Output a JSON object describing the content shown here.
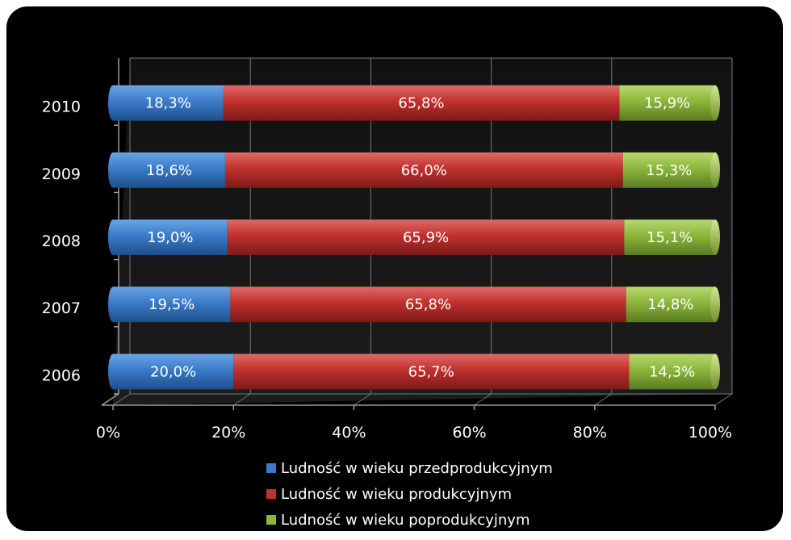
{
  "chart_data": {
    "type": "bar",
    "orientation": "horizontal",
    "stacked": "percent",
    "categories": [
      "2006",
      "2007",
      "2008",
      "2009",
      "2010"
    ],
    "series": [
      {
        "name": "Ludność w wieku przedprodukcyjnym",
        "values": [
          20.0,
          19.5,
          19.0,
          18.6,
          18.3
        ],
        "labels": [
          "20,0%",
          "19,5%",
          "19,0%",
          "18,6%",
          "18,3%"
        ],
        "color": "#3b7bc8"
      },
      {
        "name": "Ludność w wieku produkcyjnym",
        "values": [
          65.7,
          65.8,
          65.9,
          66.0,
          65.8
        ],
        "labels": [
          "65,7%",
          "65,8%",
          "65,9%",
          "66,0%",
          "65,8%"
        ],
        "color": "#c0312e"
      },
      {
        "name": "Ludność w wieku poprodukcyjnym",
        "values": [
          14.3,
          14.8,
          15.1,
          15.3,
          15.9
        ],
        "labels": [
          "14,3%",
          "14,8%",
          "15,1%",
          "15,3%",
          "15,9%"
        ],
        "color": "#8db63c"
      }
    ],
    "x_ticks": [
      "0%",
      "20%",
      "40%",
      "60%",
      "80%",
      "100%"
    ],
    "xlim": [
      0,
      100
    ],
    "grid": true,
    "legend_position": "bottom",
    "background": "#000000"
  }
}
